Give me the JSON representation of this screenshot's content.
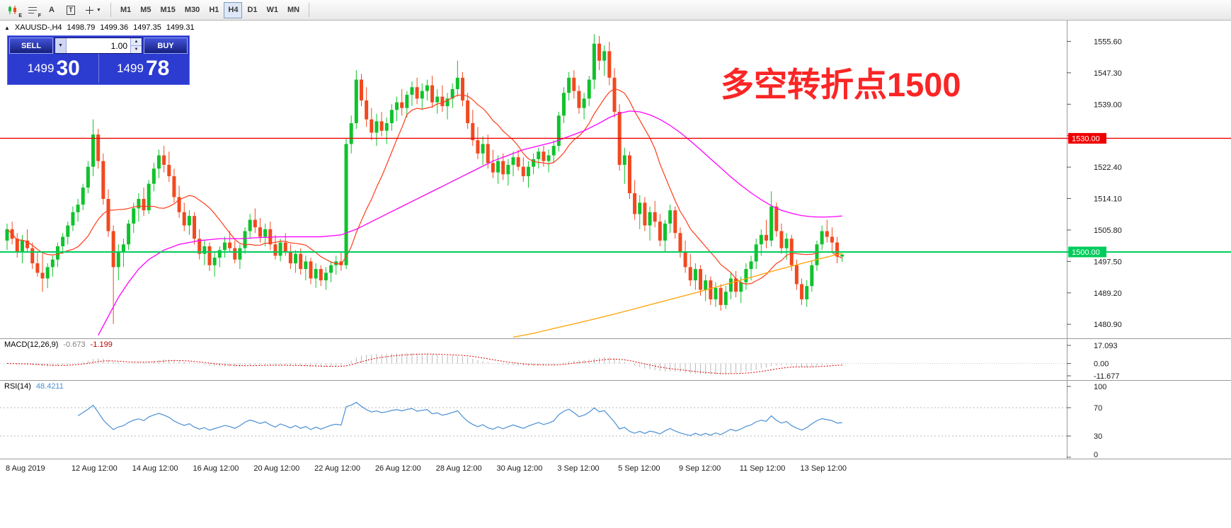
{
  "toolbar": {
    "icon_buttons": [
      {
        "name": "candlestick-style-icon",
        "sub": "E"
      },
      {
        "name": "chart-list-icon",
        "sub": "F"
      },
      {
        "name": "font-tool",
        "label": "A"
      },
      {
        "name": "text-label-tool",
        "label": "T"
      },
      {
        "name": "crosshair-tool",
        "caret": "▼"
      }
    ],
    "timeframes": [
      "M1",
      "M5",
      "M15",
      "M30",
      "H1",
      "H4",
      "D1",
      "W1",
      "MN"
    ],
    "active_timeframe": "H4"
  },
  "window": {
    "title_symbol": "XAUUSD-,H4",
    "open": "1498.79",
    "high": "1499.36",
    "low": "1497.35",
    "close": "1499.31",
    "collapse_glyph": "▲"
  },
  "one_click": {
    "sell_label": "SELL",
    "buy_label": "BUY",
    "volume": "1.00",
    "sell_big": "1499",
    "sell_pips": "30",
    "buy_big": "1499",
    "buy_pips": "78"
  },
  "annotation": {
    "text": "多空转折点1500",
    "color": "#fb2525"
  },
  "levels": {
    "resistance": {
      "price": 1530.0,
      "label": "1530.00",
      "color": "#ee0000"
    },
    "support": {
      "price": 1500.0,
      "label": "1500.00",
      "color": "#00cc5c"
    }
  },
  "price_axis": {
    "labels": [
      1555.6,
      1547.3,
      1539.0,
      1530.7,
      1522.4,
      1514.1,
      1505.8,
      1497.5,
      1489.2,
      1480.9
    ]
  },
  "macd_panel": {
    "label": "MACD(12,26,9)",
    "value": "-0.673",
    "signal_value": "-1.199",
    "axis": [
      [
        17.093,
        "17.093"
      ],
      [
        0,
        "0.00"
      ],
      [
        -11.677,
        "-11.677"
      ]
    ],
    "axis_max": 17.093,
    "axis_min": -11.677,
    "histogram_color": "#b9b9b9",
    "signal_color": "#e00000"
  },
  "rsi_panel": {
    "label": "RSI(14)",
    "value": "48.4211",
    "axis": [
      [
        100,
        "100"
      ],
      [
        70,
        "70"
      ],
      [
        30,
        "30"
      ],
      [
        0,
        "0"
      ]
    ],
    "levels": [
      70,
      30
    ],
    "line_color": "#4a8fd4"
  },
  "time_axis": [
    [
      0,
      "8 Aug 2019"
    ],
    [
      13,
      "12 Aug 12:00"
    ],
    [
      25,
      "14 Aug 12:00"
    ],
    [
      37,
      "16 Aug 12:00"
    ],
    [
      49,
      "20 Aug 12:00"
    ],
    [
      61,
      "22 Aug 12:00"
    ],
    [
      73,
      "26 Aug 12:00"
    ],
    [
      85,
      "28 Aug 12:00"
    ],
    [
      97,
      "30 Aug 12:00"
    ],
    [
      109,
      "3 Sep 12:00"
    ],
    [
      121,
      "5 Sep 12:00"
    ],
    [
      133,
      "9 Sep 12:00"
    ],
    [
      145,
      "11 Sep 12:00"
    ],
    [
      157,
      "13 Sep 12:00"
    ]
  ],
  "chart_data": {
    "type": "candlestick",
    "symbol": "XAUUSD-",
    "period": "H4",
    "up_color": "#10c22c",
    "down_color": "#f1491f",
    "price_map": {
      "price_at_top": 1561.1,
      "price_at_bottom": 1477.2
    },
    "candles": [
      [
        1503,
        1507.5,
        1500.5,
        1506
      ],
      [
        1506,
        1508,
        1502,
        1503.5
      ],
      [
        1503.5,
        1505,
        1498.5,
        1500
      ],
      [
        1500,
        1504.5,
        1497,
        1503
      ],
      [
        1503,
        1506,
        1500,
        1501
      ],
      [
        1501,
        1502.5,
        1495.5,
        1497
      ],
      [
        1497,
        1500,
        1493.5,
        1494.5
      ],
      [
        1494.5,
        1499.5,
        1489.5,
        1493
      ],
      [
        1493,
        1497,
        1490.5,
        1496
      ],
      [
        1496,
        1499,
        1493.5,
        1498
      ],
      [
        1498,
        1502.5,
        1496,
        1501.5
      ],
      [
        1501.5,
        1505,
        1499.5,
        1504
      ],
      [
        1504,
        1508,
        1502,
        1507
      ],
      [
        1507,
        1512,
        1505.5,
        1510.5
      ],
      [
        1510.5,
        1514,
        1508,
        1512.5
      ],
      [
        1512.5,
        1518,
        1511,
        1517
      ],
      [
        1517,
        1524,
        1515.5,
        1522.5
      ],
      [
        1522.5,
        1535,
        1520,
        1531
      ],
      [
        1531,
        1532.5,
        1522,
        1524
      ],
      [
        1524,
        1526,
        1512.5,
        1514
      ],
      [
        1514,
        1516.5,
        1504,
        1505.5
      ],
      [
        1505.5,
        1507,
        1481,
        1496
      ],
      [
        1496,
        1502,
        1492.5,
        1500
      ],
      [
        1500,
        1503.5,
        1496,
        1502
      ],
      [
        1502,
        1508.5,
        1500.5,
        1507.5
      ],
      [
        1507.5,
        1513,
        1505,
        1511.5
      ],
      [
        1511.5,
        1515.5,
        1508,
        1514
      ],
      [
        1514,
        1517,
        1509.5,
        1511
      ],
      [
        1511,
        1519,
        1510,
        1518
      ],
      [
        1518,
        1523.5,
        1516,
        1522
      ],
      [
        1522,
        1527,
        1519.5,
        1525.5
      ],
      [
        1525.5,
        1528,
        1521,
        1523
      ],
      [
        1523,
        1526.5,
        1518.5,
        1520
      ],
      [
        1520,
        1522,
        1513,
        1514.5
      ],
      [
        1514.5,
        1517.5,
        1509,
        1510.5
      ],
      [
        1510.5,
        1513,
        1505.5,
        1507
      ],
      [
        1507,
        1511,
        1504.5,
        1509.5
      ],
      [
        1509.5,
        1510.5,
        1502,
        1503.5
      ],
      [
        1503.5,
        1506,
        1498,
        1499.5
      ],
      [
        1499.5,
        1503,
        1496.5,
        1501.5
      ],
      [
        1501.5,
        1502.5,
        1495,
        1496.5
      ],
      [
        1496.5,
        1500,
        1493.5,
        1498.5
      ],
      [
        1498.5,
        1501.5,
        1496,
        1500.5
      ],
      [
        1500.5,
        1504,
        1498.5,
        1502.5
      ],
      [
        1502.5,
        1505.5,
        1500,
        1501
      ],
      [
        1501,
        1503,
        1497,
        1498
      ],
      [
        1498,
        1502,
        1495.5,
        1501
      ],
      [
        1501,
        1506.5,
        1499.5,
        1505.5
      ],
      [
        1505.5,
        1510,
        1503.5,
        1508.5
      ],
      [
        1508.5,
        1511.5,
        1505,
        1506.5
      ],
      [
        1506.5,
        1509,
        1502.5,
        1504
      ],
      [
        1504,
        1507.5,
        1501.5,
        1506
      ],
      [
        1506,
        1508,
        1500.5,
        1502
      ],
      [
        1502,
        1504.5,
        1498,
        1499
      ],
      [
        1499,
        1503.5,
        1497.5,
        1502.5
      ],
      [
        1502.5,
        1505,
        1499,
        1500
      ],
      [
        1500,
        1502,
        1495.5,
        1497
      ],
      [
        1497,
        1500.5,
        1494.5,
        1499.5
      ],
      [
        1499.5,
        1501,
        1494,
        1495.5
      ],
      [
        1495.5,
        1499,
        1492.5,
        1497.5
      ],
      [
        1497.5,
        1498.5,
        1491.5,
        1493
      ],
      [
        1493,
        1497,
        1490.5,
        1495.5
      ],
      [
        1495.5,
        1496.5,
        1491,
        1492.5
      ],
      [
        1492.5,
        1496,
        1490,
        1494.5
      ],
      [
        1494.5,
        1497.5,
        1492,
        1496.5
      ],
      [
        1496.5,
        1499,
        1494,
        1497.5
      ],
      [
        1497.5,
        1500,
        1495,
        1496.5
      ],
      [
        1496.5,
        1530,
        1495.5,
        1528.5
      ],
      [
        1528.5,
        1536,
        1526,
        1534
      ],
      [
        1534,
        1548,
        1532.5,
        1545.5
      ],
      [
        1545.5,
        1547,
        1538.5,
        1540
      ],
      [
        1540,
        1543.5,
        1533,
        1535
      ],
      [
        1535,
        1538,
        1529.5,
        1531.5
      ],
      [
        1531.5,
        1536.5,
        1528,
        1534.5
      ],
      [
        1534.5,
        1537,
        1530.5,
        1532
      ],
      [
        1532,
        1535.5,
        1528.5,
        1534
      ],
      [
        1534,
        1539,
        1532,
        1537.5
      ],
      [
        1537.5,
        1541,
        1534.5,
        1539.5
      ],
      [
        1539.5,
        1543,
        1536,
        1538
      ],
      [
        1538,
        1542.5,
        1535.5,
        1541.5
      ],
      [
        1541.5,
        1545,
        1538.5,
        1543.5
      ],
      [
        1543.5,
        1546,
        1539,
        1540.5
      ],
      [
        1540.5,
        1544.5,
        1537.5,
        1542.5
      ],
      [
        1542.5,
        1545.5,
        1540,
        1544
      ],
      [
        1544,
        1546.5,
        1538,
        1539.5
      ],
      [
        1539.5,
        1543,
        1536.5,
        1541
      ],
      [
        1541,
        1544,
        1537,
        1538.5
      ],
      [
        1538.5,
        1542,
        1535,
        1540.5
      ],
      [
        1540.5,
        1544.5,
        1538,
        1543
      ],
      [
        1543,
        1550.5,
        1541,
        1546
      ],
      [
        1546,
        1547.5,
        1538.5,
        1540
      ],
      [
        1540,
        1542,
        1532.5,
        1534
      ],
      [
        1534,
        1537.5,
        1528,
        1529.5
      ],
      [
        1529.5,
        1533,
        1524.5,
        1526
      ],
      [
        1526,
        1530.5,
        1523,
        1528.5
      ],
      [
        1528.5,
        1531,
        1522,
        1523.5
      ],
      [
        1523.5,
        1527,
        1519.5,
        1521
      ],
      [
        1521,
        1525.5,
        1518,
        1524
      ],
      [
        1524,
        1526,
        1519,
        1520.5
      ],
      [
        1520.5,
        1524.5,
        1517.5,
        1523
      ],
      [
        1523,
        1526.5,
        1520,
        1525
      ],
      [
        1525,
        1527,
        1521.5,
        1522.5
      ],
      [
        1522.5,
        1525,
        1518.5,
        1520
      ],
      [
        1520,
        1524,
        1517,
        1522.5
      ],
      [
        1522.5,
        1526,
        1520.5,
        1524.5
      ],
      [
        1524.5,
        1527.5,
        1522,
        1526.5
      ],
      [
        1526.5,
        1528,
        1522.5,
        1524
      ],
      [
        1524,
        1527,
        1521,
        1525.5
      ],
      [
        1525.5,
        1529.5,
        1523.5,
        1528
      ],
      [
        1528,
        1537,
        1526.5,
        1536
      ],
      [
        1536,
        1543.5,
        1534,
        1542
      ],
      [
        1542,
        1547.5,
        1540,
        1546
      ],
      [
        1546,
        1548,
        1540.5,
        1542.5
      ],
      [
        1542.5,
        1544,
        1536.5,
        1538
      ],
      [
        1538,
        1542,
        1535,
        1540.5
      ],
      [
        1540.5,
        1546.5,
        1538.5,
        1545.5
      ],
      [
        1545.5,
        1557.5,
        1543,
        1555
      ],
      [
        1555,
        1557,
        1548,
        1550.5
      ],
      [
        1550.5,
        1554.5,
        1546.5,
        1553
      ],
      [
        1553,
        1555.5,
        1544,
        1546
      ],
      [
        1546,
        1548.5,
        1535.5,
        1537
      ],
      [
        1537,
        1539,
        1521.5,
        1523
      ],
      [
        1523,
        1527.5,
        1518,
        1525.5
      ],
      [
        1525.5,
        1526.5,
        1514,
        1515.5
      ],
      [
        1515.5,
        1519,
        1508.5,
        1510
      ],
      [
        1510,
        1515,
        1506,
        1513
      ],
      [
        1513,
        1514.5,
        1505.5,
        1507
      ],
      [
        1507,
        1512,
        1503,
        1510.5
      ],
      [
        1510.5,
        1513.5,
        1506.5,
        1508
      ],
      [
        1508,
        1510,
        1501.5,
        1503
      ],
      [
        1503,
        1508.5,
        1500,
        1507.5
      ],
      [
        1507.5,
        1512.5,
        1505,
        1511
      ],
      [
        1511,
        1512,
        1503.5,
        1505
      ],
      [
        1505,
        1506.5,
        1498.5,
        1500
      ],
      [
        1500,
        1503,
        1494.5,
        1496
      ],
      [
        1496,
        1499.5,
        1491,
        1492.5
      ],
      [
        1492.5,
        1497,
        1490,
        1495.5
      ],
      [
        1495.5,
        1496.5,
        1488.5,
        1490
      ],
      [
        1490,
        1494,
        1487,
        1492.5
      ],
      [
        1492.5,
        1493.5,
        1486,
        1487.5
      ],
      [
        1487.5,
        1492,
        1485.5,
        1490.5
      ],
      [
        1490.5,
        1491.5,
        1484.5,
        1486
      ],
      [
        1486,
        1491,
        1485,
        1489.5
      ],
      [
        1489.5,
        1494.5,
        1487.5,
        1493
      ],
      [
        1493,
        1495,
        1488,
        1489.5
      ],
      [
        1489.5,
        1493.5,
        1486.5,
        1492
      ],
      [
        1492,
        1497,
        1490,
        1495.5
      ],
      [
        1495.5,
        1499,
        1492.5,
        1497.5
      ],
      [
        1497.5,
        1503.5,
        1495.5,
        1502
      ],
      [
        1502,
        1506,
        1499,
        1504.5
      ],
      [
        1504.5,
        1508.5,
        1501,
        1503
      ],
      [
        1503,
        1516,
        1501.5,
        1512
      ],
      [
        1512,
        1513,
        1504,
        1505.5
      ],
      [
        1505.5,
        1507.5,
        1499.5,
        1501
      ],
      [
        1501,
        1505,
        1498,
        1503.5
      ],
      [
        1503.5,
        1504.5,
        1495,
        1496.5
      ],
      [
        1496.5,
        1498,
        1490,
        1491.5
      ],
      [
        1491.5,
        1493,
        1486,
        1487.5
      ],
      [
        1487.5,
        1492.5,
        1485.5,
        1491
      ],
      [
        1491,
        1497.5,
        1489.5,
        1496.5
      ],
      [
        1496.5,
        1503,
        1495,
        1502
      ],
      [
        1502,
        1507,
        1500.5,
        1505.5
      ],
      [
        1505.5,
        1508.5,
        1502.5,
        1504
      ],
      [
        1504,
        1506.5,
        1500,
        1502.5
      ],
      [
        1502.5,
        1504,
        1497,
        1498.8
      ],
      [
        1498.8,
        1499.4,
        1497.4,
        1499.3
      ]
    ],
    "ma_fast": {
      "color": "#ff3c19",
      "period": 13
    },
    "ma_magenta": {
      "color": "#ff00ff",
      "points": [
        [
          18,
          1478
        ],
        [
          20,
          1483
        ],
        [
          22,
          1488
        ],
        [
          24,
          1492
        ],
        [
          26,
          1495.5
        ],
        [
          28,
          1498
        ],
        [
          31,
          1500.5
        ],
        [
          34,
          1502
        ],
        [
          38,
          1503
        ],
        [
          42,
          1503.5
        ],
        [
          46,
          1503.5
        ],
        [
          50,
          1503.8
        ],
        [
          54,
          1504
        ],
        [
          58,
          1504
        ],
        [
          62,
          1504
        ],
        [
          66,
          1504.5
        ],
        [
          69,
          1506
        ],
        [
          72,
          1508
        ],
        [
          75,
          1510
        ],
        [
          78,
          1512
        ],
        [
          81,
          1514
        ],
        [
          84,
          1516
        ],
        [
          87,
          1518
        ],
        [
          90,
          1520
        ],
        [
          93,
          1522
        ],
        [
          96,
          1524
        ],
        [
          99,
          1525.5
        ],
        [
          102,
          1527
        ],
        [
          105,
          1528
        ],
        [
          108,
          1529
        ],
        [
          111,
          1530.5
        ],
        [
          114,
          1532
        ],
        [
          117,
          1534
        ],
        [
          119,
          1535.5
        ],
        [
          121,
          1536.6
        ],
        [
          123,
          1537.2
        ],
        [
          125,
          1537
        ],
        [
          127,
          1536.2
        ],
        [
          129,
          1535
        ],
        [
          131,
          1533.4
        ],
        [
          133,
          1531.5
        ],
        [
          135,
          1529.3
        ],
        [
          137,
          1527
        ],
        [
          139,
          1524.6
        ],
        [
          141,
          1522.2
        ],
        [
          143,
          1519.8
        ],
        [
          145,
          1517.6
        ],
        [
          147,
          1515.6
        ],
        [
          149,
          1513.8
        ],
        [
          151,
          1512.2
        ],
        [
          153,
          1511
        ],
        [
          155,
          1510.2
        ],
        [
          157,
          1509.6
        ],
        [
          159,
          1509.3
        ],
        [
          161,
          1509.2
        ],
        [
          163,
          1509.3
        ],
        [
          165,
          1509.5
        ]
      ]
    },
    "ma_slow_orange": {
      "color": "#ffa200",
      "points": [
        [
          100,
          1477.5
        ],
        [
          104,
          1478.5
        ],
        [
          108,
          1479.8
        ],
        [
          112,
          1481
        ],
        [
          116,
          1482.3
        ],
        [
          120,
          1483.6
        ],
        [
          124,
          1485
        ],
        [
          128,
          1486.4
        ],
        [
          132,
          1487.8
        ],
        [
          136,
          1489.2
        ],
        [
          140,
          1490.7
        ],
        [
          144,
          1492.2
        ],
        [
          148,
          1493.7
        ],
        [
          152,
          1495.2
        ],
        [
          156,
          1496.6
        ],
        [
          160,
          1498
        ],
        [
          163,
          1499
        ],
        [
          165,
          1499.6
        ]
      ]
    }
  }
}
